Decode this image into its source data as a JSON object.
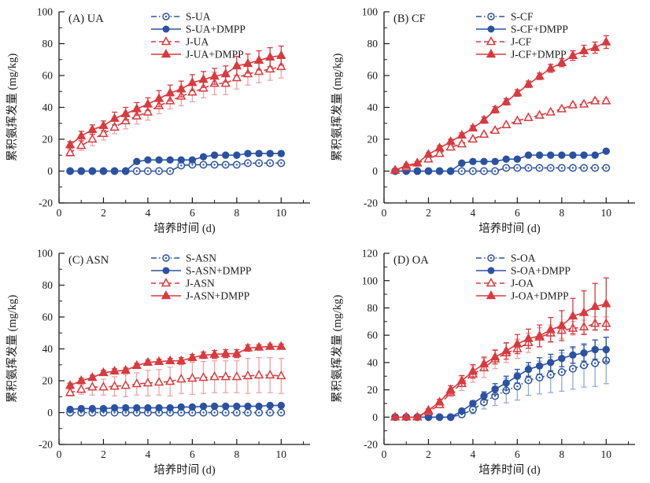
{
  "page": {
    "background": "#ffffff"
  },
  "colors": {
    "blue": "#2b52a2",
    "blue_light": "#8fabd9",
    "red": "#d93a3e",
    "red_light": "#f0a2a6",
    "axis": "#1a1a1a"
  },
  "chart_data": [
    {
      "type": "line",
      "title": "(A) UA",
      "xlabel": "培养时间 (d)",
      "ylabel": "累积氨挥发量 (mg/kg)",
      "xlim": [
        0,
        11.3
      ],
      "ylim": [
        -20,
        100
      ],
      "xticks": [
        0,
        2,
        4,
        6,
        8,
        10
      ],
      "x_minor": [
        1,
        3,
        5,
        7,
        9,
        11
      ],
      "yticks": [
        -20,
        0,
        20,
        40,
        60,
        80,
        100
      ],
      "y_minor_step": 10,
      "legend_position": "top-inside",
      "grid": false,
      "x": [
        0.5,
        1,
        1.5,
        2,
        2.5,
        3,
        3.5,
        4,
        4.5,
        5,
        5.5,
        6,
        6.5,
        7,
        7.5,
        8,
        8.5,
        9,
        9.5,
        10
      ],
      "series": [
        {
          "name": "S-UA",
          "color": "blue",
          "err_color": "blue_light",
          "line": "dashdot",
          "marker": "circle-open",
          "values": [
            0,
            0,
            0,
            0,
            0,
            0,
            0,
            0,
            0,
            0,
            3.5,
            4,
            4,
            4,
            4,
            4,
            5,
            5,
            5,
            5
          ],
          "err": [
            0,
            0,
            0,
            0,
            0,
            0,
            0.3,
            0.3,
            0.3,
            0.3,
            0.5,
            0.5,
            0.5,
            0.5,
            0.5,
            0.5,
            0.5,
            0.5,
            0.5,
            0.5
          ]
        },
        {
          "name": "S-UA+DMPP",
          "color": "blue",
          "err_color": "blue",
          "line": "solid",
          "marker": "circle-filled",
          "values": [
            0,
            0,
            0,
            0,
            0,
            0,
            6,
            7,
            7,
            7,
            7,
            7,
            9,
            10,
            10,
            10,
            11,
            11,
            11,
            11
          ],
          "err": [
            0,
            0,
            0,
            0,
            0,
            0,
            0.5,
            0.5,
            0.5,
            0.5,
            0.5,
            0.5,
            0.5,
            0.5,
            0.5,
            0.5,
            1.5,
            1.5,
            1.5,
            1.5
          ]
        },
        {
          "name": "J-UA",
          "color": "red",
          "err_color": "red_light",
          "line": "dash",
          "marker": "triangle-open",
          "values": [
            11.5,
            16,
            20,
            23.5,
            27.5,
            31.5,
            34.5,
            37,
            41,
            44,
            47,
            49.5,
            52,
            55,
            55,
            58.5,
            61,
            62.5,
            64,
            65.5
          ],
          "err": [
            2,
            3,
            4,
            4,
            4,
            5,
            5,
            5,
            5,
            5,
            6,
            6,
            6,
            7,
            7,
            7,
            7,
            7,
            7,
            7
          ]
        },
        {
          "name": "J-UA+DMPP",
          "color": "red",
          "err_color": "red",
          "line": "solid",
          "marker": "triangle-filled",
          "values": [
            16.5,
            22,
            26,
            28.5,
            33,
            36,
            39,
            42,
            45.5,
            49,
            51.5,
            55.5,
            57.5,
            59.5,
            61,
            66,
            67.5,
            69.5,
            71.5,
            72.5
          ],
          "err": [
            2,
            3,
            3,
            3,
            4,
            4,
            4,
            4,
            5,
            5,
            5,
            5,
            5,
            5,
            5,
            6,
            6,
            6,
            6,
            6
          ]
        }
      ]
    },
    {
      "type": "line",
      "title": "(B) CF",
      "xlabel": "培养时间 (d)",
      "ylabel": "累积氨挥发量 (mg/kg)",
      "xlim": [
        0,
        11.3
      ],
      "ylim": [
        -20,
        100
      ],
      "xticks": [
        0,
        2,
        4,
        6,
        8,
        10
      ],
      "x_minor": [
        1,
        3,
        5,
        7,
        9,
        11
      ],
      "yticks": [
        -20,
        0,
        20,
        40,
        60,
        80,
        100
      ],
      "y_minor_step": 10,
      "legend_position": "top-inside",
      "grid": false,
      "x": [
        0.5,
        1,
        1.5,
        2,
        2.5,
        3,
        3.5,
        4,
        4.5,
        5,
        5.5,
        6,
        6.5,
        7,
        7.5,
        8,
        8.5,
        9,
        9.5,
        10
      ],
      "series": [
        {
          "name": "S-CF",
          "color": "blue",
          "err_color": "blue_light",
          "line": "dashdot",
          "marker": "circle-open",
          "values": [
            0,
            0,
            0,
            0,
            0,
            0,
            0,
            0,
            0,
            0,
            2,
            2,
            2,
            2,
            2,
            2,
            2,
            2,
            2,
            2
          ],
          "err": [
            0,
            0,
            0,
            0,
            0,
            0,
            0.3,
            0.3,
            0.3,
            0.3,
            0.5,
            0.5,
            0.5,
            0.5,
            0.5,
            0.5,
            0.5,
            0.5,
            0.5,
            0.5
          ]
        },
        {
          "name": "S-CF+DMPP",
          "color": "blue",
          "err_color": "blue",
          "line": "solid",
          "marker": "circle-filled",
          "values": [
            0,
            0,
            0,
            0,
            0,
            0,
            5,
            6,
            6,
            6,
            7.5,
            7.5,
            10,
            10,
            10,
            10,
            10,
            10,
            10,
            12.5
          ],
          "err": [
            0,
            0,
            0,
            0,
            0,
            0,
            0.5,
            0.5,
            0.5,
            0.5,
            0.5,
            0.5,
            0.5,
            0.5,
            0.5,
            0.5,
            0.5,
            0.5,
            0.5,
            1
          ]
        },
        {
          "name": "J-CF",
          "color": "red",
          "err_color": "red_light",
          "line": "dash",
          "marker": "triangle-open",
          "values": [
            0.5,
            2.5,
            5,
            7.5,
            11,
            15,
            17,
            20,
            23,
            25.5,
            29,
            31.5,
            33.5,
            35,
            37,
            39,
            41.5,
            42,
            44,
            44
          ],
          "err": [
            0.5,
            0.5,
            1,
            1,
            1,
            1,
            1,
            1,
            1,
            1,
            1,
            1,
            1,
            1,
            1,
            1,
            1.5,
            1.5,
            1.5,
            1.5
          ]
        },
        {
          "name": "J-CF+DMPP",
          "color": "red",
          "err_color": "red",
          "line": "solid",
          "marker": "triangle-filled",
          "values": [
            0.5,
            3.5,
            5,
            10.5,
            14.5,
            18.5,
            22.5,
            27,
            32,
            38.5,
            43.5,
            49,
            54.5,
            59.5,
            64.5,
            68,
            72.5,
            75.5,
            77.5,
            81
          ],
          "err": [
            0.5,
            1,
            1,
            1,
            1.5,
            1.5,
            1.5,
            1.5,
            2,
            2,
            2,
            2,
            2,
            2,
            2.5,
            2.5,
            3,
            3.5,
            3.5,
            4
          ]
        }
      ]
    },
    {
      "type": "line",
      "title": "(C) ASN",
      "xlabel": "培养时间 (d)",
      "ylabel": "累积氨挥发量 (mg/kg)",
      "xlim": [
        0,
        11.3
      ],
      "ylim": [
        -20,
        100
      ],
      "xticks": [
        0,
        2,
        4,
        6,
        8,
        10
      ],
      "x_minor": [
        1,
        3,
        5,
        7,
        9,
        11
      ],
      "yticks": [
        -20,
        0,
        20,
        40,
        60,
        80,
        100
      ],
      "y_minor_step": 10,
      "legend_position": "top-inside",
      "grid": false,
      "x": [
        0.5,
        1,
        1.5,
        2,
        2.5,
        3,
        3.5,
        4,
        4.5,
        5,
        5.5,
        6,
        6.5,
        7,
        7.5,
        8,
        8.5,
        9,
        9.5,
        10
      ],
      "series": [
        {
          "name": "S-ASN",
          "color": "blue",
          "err_color": "blue_light",
          "line": "dashdot",
          "marker": "circle-open",
          "values": [
            0,
            0,
            0,
            0,
            0,
            0,
            0,
            0,
            0,
            0,
            0,
            0,
            0,
            0,
            0,
            0,
            0,
            0,
            0,
            0
          ],
          "err": [
            0.5,
            0.5,
            0.5,
            0.5,
            0.5,
            0.5,
            0.5,
            0.5,
            0.5,
            0.5,
            0.5,
            0.5,
            0.5,
            0.5,
            0.5,
            0.5,
            0.5,
            0.5,
            0.5,
            0.5
          ]
        },
        {
          "name": "S-ASN+DMPP",
          "color": "blue",
          "err_color": "blue",
          "line": "solid",
          "marker": "circle-filled",
          "values": [
            2,
            2.5,
            2.5,
            2.5,
            3,
            3,
            3,
            3,
            3,
            3,
            3.5,
            3.5,
            4,
            4,
            4,
            4,
            4,
            4,
            4.5,
            4.5
          ],
          "err": [
            0.5,
            0.5,
            0.5,
            0.5,
            0.5,
            0.5,
            0.5,
            0.5,
            0.5,
            0.5,
            0.5,
            0.5,
            0.5,
            0.5,
            0.5,
            0.5,
            0.5,
            0.5,
            0.5,
            0.5
          ]
        },
        {
          "name": "J-ASN",
          "color": "red",
          "err_color": "red_light",
          "line": "dash",
          "marker": "triangle-open",
          "values": [
            12.5,
            14.5,
            16,
            16,
            16.5,
            17,
            18,
            18.5,
            19,
            19.5,
            21,
            21.5,
            22,
            22.5,
            22.5,
            22.5,
            23,
            23.5,
            23.5,
            23
          ],
          "err": [
            2,
            3,
            5,
            5,
            6,
            7,
            7,
            8,
            8,
            9,
            9,
            10,
            10,
            10,
            10,
            10,
            11,
            11,
            11,
            11
          ]
        },
        {
          "name": "J-ASN+DMPP",
          "color": "red",
          "err_color": "red",
          "line": "solid",
          "marker": "triangle-filled",
          "values": [
            17,
            20,
            22,
            25,
            26,
            26.5,
            29.5,
            31.5,
            32,
            32.5,
            32.5,
            34.5,
            36,
            36.5,
            37,
            37,
            40.5,
            41,
            41.5,
            41.5
          ],
          "err": [
            1.5,
            1.5,
            1.5,
            1.5,
            1.5,
            1.5,
            1.5,
            1.5,
            1.5,
            1.5,
            2,
            2,
            2,
            2.5,
            2.5,
            2.5,
            2,
            1.5,
            1.5,
            1.5
          ]
        }
      ]
    },
    {
      "type": "line",
      "title": "(D) OA",
      "xlabel": "培养时间 (d)",
      "ylabel": "累积氨挥发量 (mg/kg)",
      "xlim": [
        0,
        11.3
      ],
      "ylim": [
        -20,
        120
      ],
      "xticks": [
        0,
        2,
        4,
        6,
        8,
        10
      ],
      "x_minor": [
        1,
        3,
        5,
        7,
        9,
        11
      ],
      "yticks": [
        -20,
        0,
        20,
        40,
        60,
        80,
        100,
        120
      ],
      "y_minor_step": 10,
      "legend_position": "top-inside",
      "grid": false,
      "x": [
        0.5,
        1,
        1.5,
        2,
        2.5,
        3,
        3.5,
        4,
        4.5,
        5,
        5.5,
        6,
        6.5,
        7,
        7.5,
        8,
        8.5,
        9,
        9.5,
        10
      ],
      "series": [
        {
          "name": "S-OA",
          "color": "blue",
          "err_color": "blue_light",
          "line": "dashdot",
          "marker": "circle-open",
          "values": [
            0,
            0,
            0,
            0,
            0,
            0,
            2,
            5.5,
            11,
            15.5,
            19.5,
            22.5,
            27,
            29,
            31,
            33,
            35.5,
            38,
            39.5,
            41.5
          ],
          "err": [
            0,
            0,
            0,
            0,
            0,
            0,
            1,
            3,
            5,
            7,
            9,
            10,
            11,
            12,
            13,
            14,
            15,
            16,
            17,
            17
          ]
        },
        {
          "name": "S-OA+DMPP",
          "color": "blue",
          "err_color": "blue",
          "line": "solid",
          "marker": "circle-filled",
          "values": [
            0,
            0,
            0,
            0,
            0,
            0,
            4.5,
            10,
            15.5,
            20.5,
            25,
            30,
            35,
            37.5,
            40,
            43,
            45.5,
            47,
            49.5,
            49.5
          ],
          "err": [
            0,
            0,
            0,
            0,
            0,
            0,
            1,
            2,
            3,
            4,
            5,
            5,
            5,
            6,
            6,
            6,
            6,
            6,
            7,
            9
          ]
        },
        {
          "name": "J-OA",
          "color": "red",
          "err_color": "red_light",
          "line": "dash",
          "marker": "triangle-open",
          "values": [
            0,
            0,
            0,
            4,
            9,
            18,
            24.5,
            31.5,
            36,
            42.5,
            47,
            50,
            54.5,
            58.5,
            61.5,
            63.5,
            65,
            66,
            68.5,
            68.5
          ],
          "err": [
            0.3,
            0.3,
            0.3,
            1,
            2,
            3,
            5,
            6,
            7,
            7,
            7,
            7,
            7,
            7,
            6,
            6,
            5,
            5,
            5,
            5
          ]
        },
        {
          "name": "J-OA+DMPP",
          "color": "red",
          "err_color": "red",
          "line": "solid",
          "marker": "triangle-filled",
          "values": [
            0,
            0,
            0,
            5,
            11,
            20,
            26.5,
            33.5,
            39,
            44,
            48.5,
            53.5,
            57.5,
            59.5,
            64,
            67,
            74,
            76.5,
            81,
            83
          ],
          "err": [
            0.3,
            0.3,
            0.3,
            1,
            2,
            3,
            4,
            5,
            5,
            5,
            6,
            7,
            7,
            8,
            9,
            11,
            13,
            16,
            17,
            19
          ]
        }
      ]
    }
  ]
}
